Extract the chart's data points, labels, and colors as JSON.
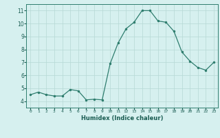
{
  "x": [
    0,
    1,
    2,
    3,
    4,
    5,
    6,
    7,
    8,
    9,
    10,
    11,
    12,
    13,
    14,
    15,
    16,
    17,
    18,
    19,
    20,
    21,
    22,
    23
  ],
  "y": [
    4.5,
    4.7,
    4.5,
    4.4,
    4.4,
    4.9,
    4.8,
    4.1,
    4.15,
    4.1,
    6.9,
    8.5,
    9.6,
    10.1,
    11.0,
    11.0,
    10.2,
    10.1,
    9.4,
    7.8,
    7.1,
    6.6,
    6.4,
    7.0
  ],
  "xlabel": "Humidex (Indice chaleur)",
  "ylim": [
    3.5,
    11.5
  ],
  "xlim": [
    -0.5,
    23.5
  ],
  "yticks": [
    4,
    5,
    6,
    7,
    8,
    9,
    10,
    11
  ],
  "xticks": [
    0,
    1,
    2,
    3,
    4,
    5,
    6,
    7,
    8,
    9,
    10,
    11,
    12,
    13,
    14,
    15,
    16,
    17,
    18,
    19,
    20,
    21,
    22,
    23
  ],
  "line_color": "#2e7d6e",
  "marker_color": "#2e7d6e",
  "bg_color": "#d6f0ef",
  "grid_color": "#b5d8d5",
  "xlabel_color": "#1a5c52",
  "tick_color": "#1a5c52",
  "spine_color": "#2e7d6e"
}
